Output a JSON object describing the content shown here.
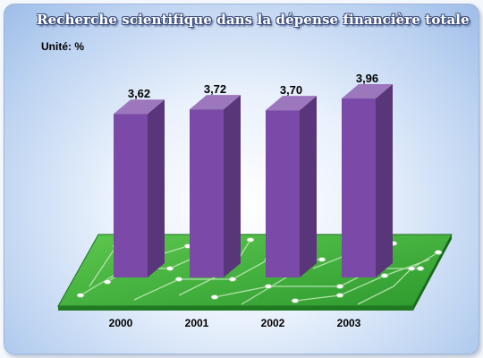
{
  "chart_data": {
    "type": "bar",
    "title": "Recherche scientifique dans la dépense financière totale",
    "unit_label": "Unité: %",
    "categories": [
      "2000",
      "2001",
      "2002",
      "2003"
    ],
    "values": [
      3.62,
      3.72,
      3.7,
      3.96
    ],
    "value_labels": [
      "3,62",
      "3,72",
      "3,70",
      "3,96"
    ],
    "xlabel": "",
    "ylabel": "",
    "grid": false,
    "legend": "none",
    "bar_color": "#7b4aa8",
    "base_color": "#3fae3a"
  }
}
